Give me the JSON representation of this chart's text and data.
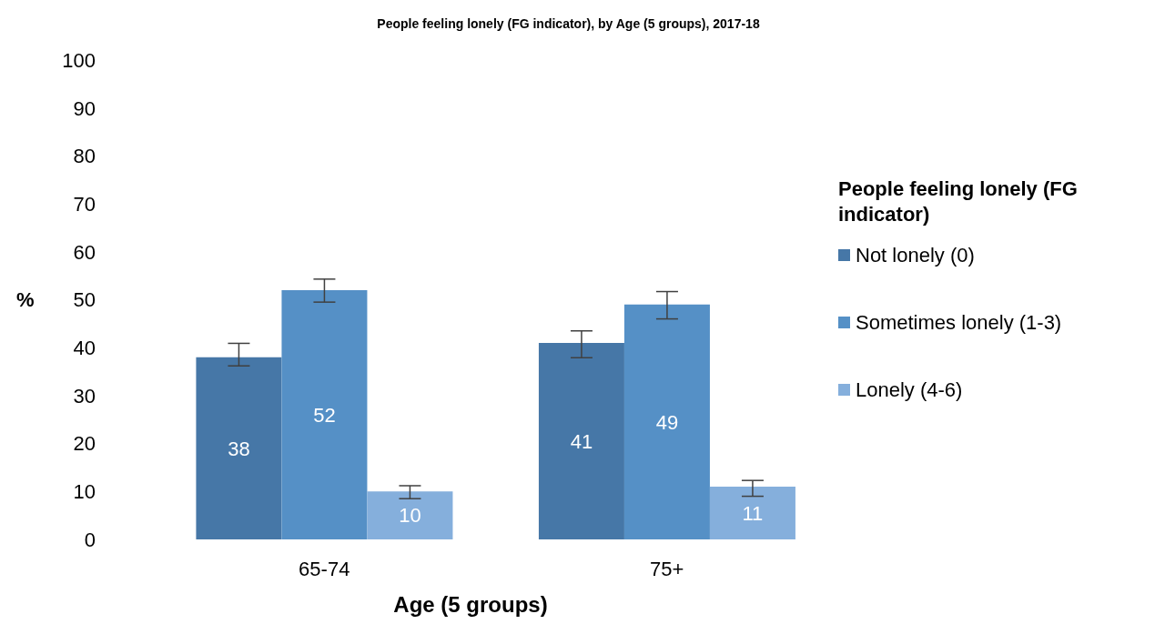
{
  "chart_data": {
    "type": "bar",
    "title": "People feeling lonely (FG indicator), by Age (5 groups), 2017-18",
    "xlabel": "Age (5 groups)",
    "ylabel": "%",
    "legend_title": "People feeling lonely (FG indicator)",
    "categories": [
      "65-74",
      "75+"
    ],
    "series": [
      {
        "name": "Not lonely (0)",
        "color": "#4677a7",
        "values": [
          38,
          41
        ],
        "errors": [
          [
            36.2,
            40.9
          ],
          [
            37.9,
            43.5
          ]
        ]
      },
      {
        "name": "Sometimes lonely (1-3)",
        "color": "#5590c6",
        "values": [
          52,
          49
        ],
        "errors": [
          [
            49.5,
            54.3
          ],
          [
            46,
            51.7
          ]
        ]
      },
      {
        "name": "Lonely (4-6)",
        "color": "#85afdc",
        "values": [
          10,
          11
        ],
        "errors": [
          [
            8.5,
            11.2
          ],
          [
            9,
            12.3
          ]
        ]
      }
    ],
    "ylim": [
      0,
      100
    ],
    "yticks": [
      0,
      10,
      20,
      30,
      40,
      50,
      60,
      70,
      80,
      90,
      100
    ],
    "data_labels": true,
    "grid": false,
    "legend": "right"
  }
}
